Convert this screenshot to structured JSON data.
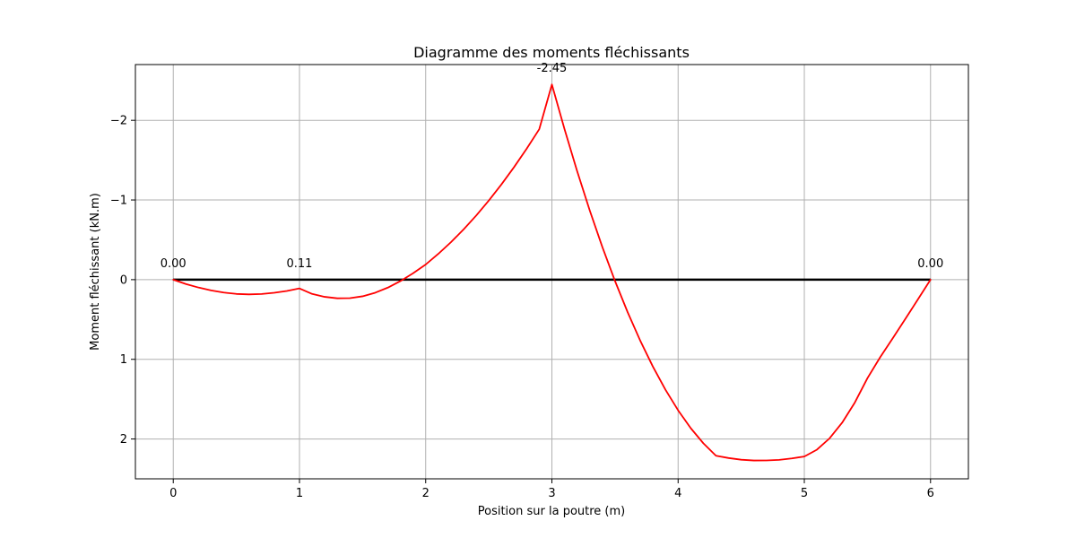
{
  "chart_data": {
    "type": "line",
    "title": "Diagramme des moments fléchissants",
    "xlabel": "Position sur la poutre (m)",
    "ylabel": "Moment fléchissant (kN.m)",
    "xlim": [
      -0.3,
      6.3
    ],
    "ylim": [
      2.5,
      -2.7
    ],
    "y_inverted": true,
    "grid": true,
    "x_ticks": [
      0,
      1,
      2,
      3,
      4,
      5,
      6
    ],
    "x_tick_labels": [
      "0",
      "1",
      "2",
      "3",
      "4",
      "5",
      "6"
    ],
    "y_ticks": [
      -2,
      -1,
      0,
      1,
      2
    ],
    "y_tick_labels": [
      "−2",
      "−1",
      "0",
      "1",
      "2"
    ],
    "beam_line": {
      "x": [
        0,
        6
      ],
      "y": [
        0,
        0
      ],
      "color": "#000000"
    },
    "series": [
      {
        "color": "#ff0000",
        "x": [
          0,
          0.1,
          0.2,
          0.3,
          0.4,
          0.5,
          0.6,
          0.7,
          0.8,
          0.9,
          1.0,
          1.1,
          1.2,
          1.3,
          1.4,
          1.5,
          1.6,
          1.7,
          1.8,
          1.9,
          2.0,
          2.1,
          2.2,
          2.3,
          2.4,
          2.5,
          2.6,
          2.7,
          2.8,
          2.9,
          3.0,
          3.1,
          3.2,
          3.3,
          3.4,
          3.5,
          3.6,
          3.7,
          3.8,
          3.9,
          4.0,
          4.1,
          4.2,
          4.3,
          4.4,
          4.5,
          4.6,
          4.7,
          4.8,
          4.9,
          5.0,
          5.1,
          5.2,
          5.3,
          5.4,
          5.5,
          5.6,
          5.7,
          5.8,
          5.9,
          6.0
        ],
        "y": [
          0,
          0.055,
          0.099,
          0.135,
          0.162,
          0.179,
          0.185,
          0.18,
          0.165,
          0.142,
          0.11,
          0.179,
          0.216,
          0.234,
          0.232,
          0.209,
          0.164,
          0.1,
          0.018,
          -0.08,
          -0.19,
          -0.324,
          -0.47,
          -0.63,
          -0.804,
          -0.993,
          -1.195,
          -1.412,
          -1.643,
          -1.889,
          -2.45,
          -1.889,
          -1.362,
          -0.868,
          -0.409,
          0.017,
          0.408,
          0.766,
          1.091,
          1.382,
          1.64,
          1.864,
          2.054,
          2.21,
          2.239,
          2.26,
          2.27,
          2.269,
          2.262,
          2.244,
          2.22,
          2.134,
          1.992,
          1.795,
          1.543,
          1.237,
          0.976,
          0.737,
          0.494,
          0.248,
          0
        ]
      }
    ],
    "annotations": [
      {
        "x": 0,
        "y": 0,
        "text": "0.00"
      },
      {
        "x": 1,
        "y": 0,
        "text": "0.11"
      },
      {
        "x": 3,
        "y": -2.45,
        "text": "-2.45"
      },
      {
        "x": 6,
        "y": 0,
        "text": "0.00"
      }
    ]
  }
}
